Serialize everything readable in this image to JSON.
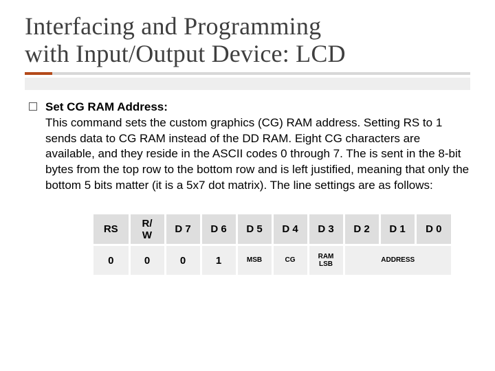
{
  "title_line1": "Interfacing and Programming",
  "title_line2": "with Input/Output Device: LCD",
  "body": {
    "lead": "Set CG RAM Address:",
    "text": "This command sets the custom graphics (CG) RAM address. Setting RS to 1 sends data to CG RAM instead of the DD RAM. Eight CG characters are available, and they reside in the ASCII codes 0 through 7. The is sent in the 8-bit bytes from the top row to the bottom row and is left justified, meaning that only the bottom 5 bits matter (it is a 5x7 dot matrix). The line settings are as follows:"
  },
  "table": {
    "headers": [
      "RS",
      "R/\nW",
      "D 7",
      "D 6",
      "D 5",
      "D 4",
      "D 3",
      "D 2",
      "D 1",
      "D 0"
    ],
    "row": {
      "rs": "0",
      "rw": "0",
      "d7": "0",
      "d6": "1",
      "d5": "MSB",
      "d4": "CG",
      "d3": "RAM\nLSB",
      "addr": "ADDRESS"
    },
    "header_bg": "#dedede",
    "row_bg": "#efefef"
  },
  "accent_color": "#b44a1a",
  "accent_gray": "#d8d8d8"
}
